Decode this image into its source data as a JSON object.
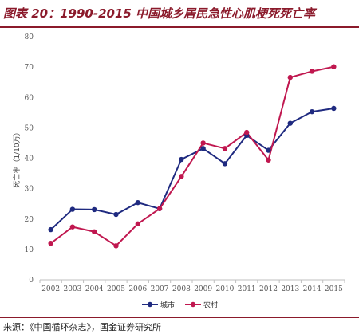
{
  "figure_title": "图表 20：1990-2015 中国城乡居民急性心肌梗死死亡率",
  "source": "来源：《中国循环杂志》，国金证券研究所",
  "chart_data": {
    "type": "line",
    "title": "",
    "xlabel": "",
    "ylabel": "死亡率（1/10万）",
    "ylim": [
      0,
      80
    ],
    "yticks": [
      0,
      10,
      20,
      30,
      40,
      50,
      60,
      70,
      80
    ],
    "x": [
      "2002",
      "2003",
      "2004",
      "2005",
      "2006",
      "2007",
      "2008",
      "2009",
      "2010",
      "2011",
      "2012",
      "2013",
      "2014",
      "2015"
    ],
    "grid": false,
    "legend_position": "bottom",
    "series": [
      {
        "name": "城市",
        "color": "#1F2A80",
        "values": [
          16.5,
          23.2,
          23.1,
          21.5,
          25.4,
          23.4,
          39.6,
          43.2,
          38.2,
          47.5,
          42.6,
          51.5,
          55.3,
          56.4
        ]
      },
      {
        "name": "农村",
        "color": "#C0174F",
        "values": [
          12.0,
          17.4,
          15.8,
          11.2,
          18.4,
          23.4,
          34.0,
          45.0,
          43.2,
          48.5,
          39.4,
          66.6,
          68.6,
          70.1
        ]
      }
    ]
  }
}
